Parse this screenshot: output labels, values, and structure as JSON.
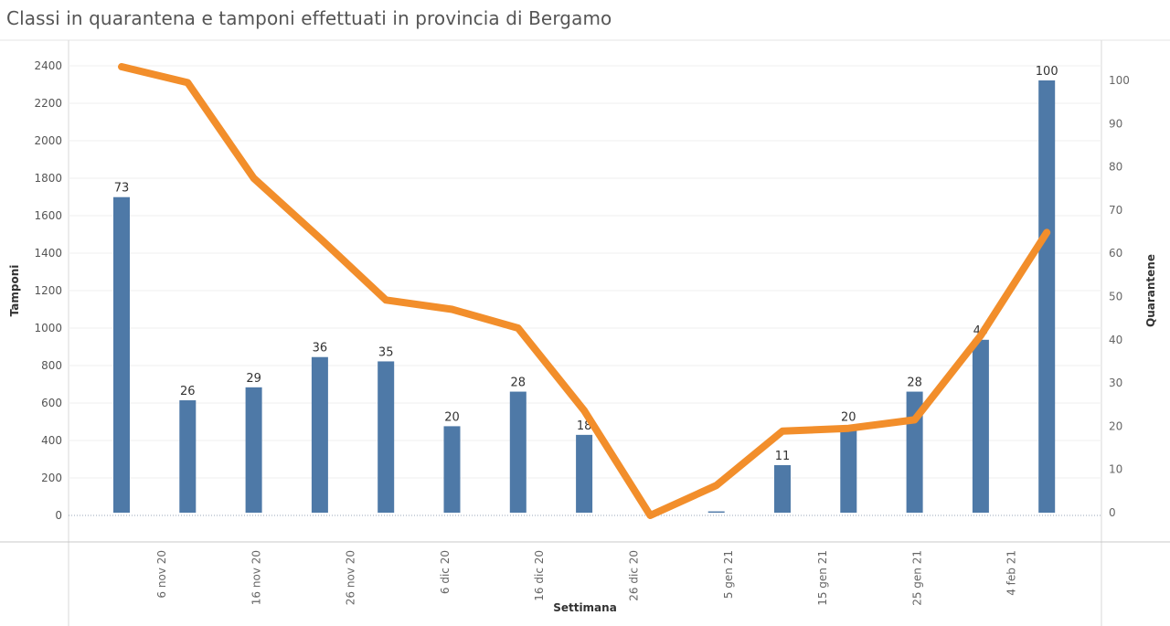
{
  "title": "Classi in quarantena e tamponi effettuati in provincia di Bergamo",
  "chart_data": {
    "type": "bar",
    "xlabel": "Settimana",
    "ylabel_left": "Tamponi",
    "ylabel_right": "Quarantene",
    "ylim_left": [
      0,
      2400
    ],
    "yticks_left": [
      0,
      200,
      400,
      600,
      800,
      1000,
      1200,
      1400,
      1600,
      1800,
      2000,
      2200,
      2400
    ],
    "ylim_right": [
      0,
      100
    ],
    "yticks_right": [
      0,
      10,
      20,
      30,
      40,
      50,
      60,
      70,
      80,
      90,
      100
    ],
    "x_tick_labels": [
      "6 nov 20",
      "16 nov 20",
      "26 nov 20",
      "6 dic 20",
      "16 dic 20",
      "26 dic 20",
      "5 gen 21",
      "15 gen 21",
      "25 gen 21",
      "4 feb 21"
    ],
    "grid": true,
    "series": [
      {
        "name": "Quarantene",
        "type": "bar",
        "axis": "right",
        "color": "#4e79a7",
        "values": [
          73,
          26,
          29,
          36,
          35,
          20,
          28,
          18,
          0,
          0.3,
          11,
          20,
          28,
          40,
          100
        ],
        "labels": [
          "73",
          "26",
          "29",
          "36",
          "35",
          "20",
          "28",
          "18",
          "",
          "",
          "11",
          "20",
          "28",
          "40",
          "100"
        ]
      },
      {
        "name": "Tamponi",
        "type": "line",
        "axis": "left",
        "color": "#f28e2b",
        "values": [
          2395,
          2310,
          1800,
          1480,
          1150,
          1100,
          1000,
          560,
          0,
          160,
          450,
          465,
          510,
          960,
          1510
        ]
      }
    ]
  }
}
